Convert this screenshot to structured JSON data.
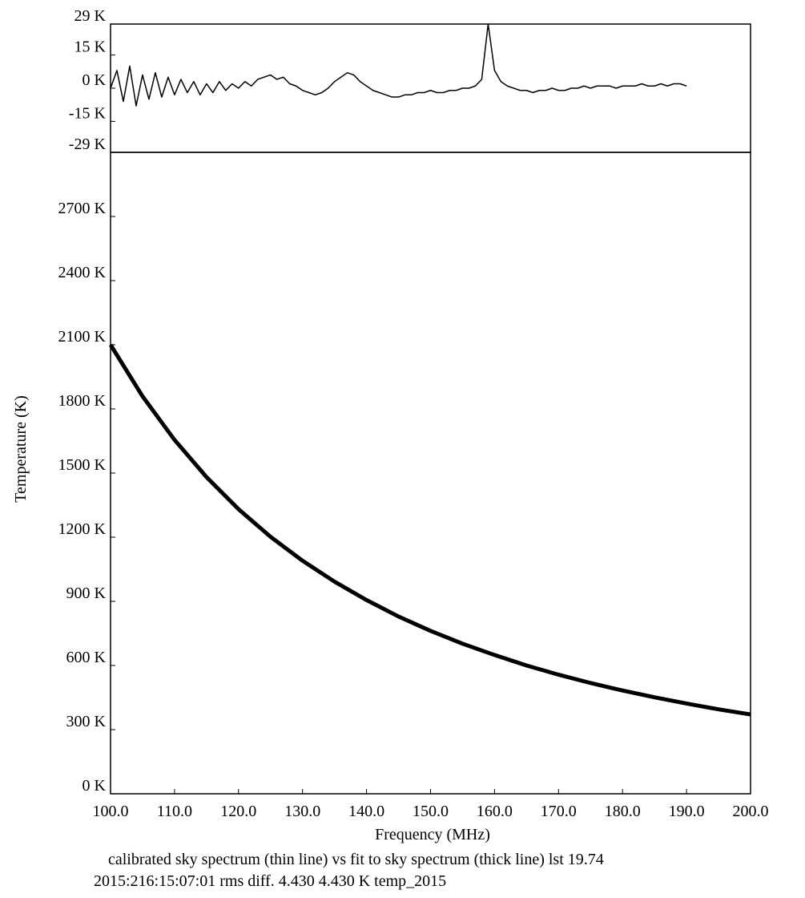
{
  "chart_data": [
    {
      "type": "line",
      "x": [
        100,
        101,
        102,
        103,
        104,
        105,
        106,
        107,
        108,
        109,
        110,
        111,
        112,
        113,
        114,
        115,
        116,
        117,
        118,
        119,
        120,
        121,
        122,
        123,
        124,
        125,
        126,
        127,
        128,
        129,
        130,
        131,
        132,
        133,
        134,
        135,
        136,
        137,
        138,
        139,
        140,
        141,
        142,
        143,
        144,
        145,
        146,
        147,
        148,
        149,
        150,
        151,
        152,
        153,
        154,
        155,
        156,
        157,
        158,
        159,
        160,
        161,
        162,
        163,
        164,
        165,
        166,
        167,
        168,
        169,
        170,
        171,
        172,
        173,
        174,
        175,
        176,
        177,
        178,
        179,
        180,
        181,
        182,
        183,
        184,
        185,
        186,
        187,
        188,
        189,
        190
      ],
      "series": [
        {
          "color": "#000000",
          "values": [
            0,
            8,
            -6,
            10,
            -8,
            6,
            -5,
            7,
            -4,
            5,
            -3,
            4,
            -2,
            3,
            -3,
            2,
            -2,
            3,
            -1,
            2,
            0,
            3,
            1,
            4,
            5,
            6,
            4,
            5,
            2,
            1,
            -1,
            -2,
            -3,
            -2,
            0,
            3,
            5,
            7,
            6,
            3,
            1,
            -1,
            -2,
            -3,
            -4,
            -4,
            -3,
            -3,
            -2,
            -2,
            -1,
            -2,
            -2,
            -1,
            -1,
            0,
            0,
            1,
            4,
            29,
            8,
            3,
            1,
            0,
            -1,
            -1,
            -2,
            -1,
            -1,
            0,
            -1,
            -1,
            0,
            0,
            1,
            0,
            1,
            1,
            1,
            0,
            1,
            1,
            1,
            2,
            1,
            1,
            2,
            1,
            2,
            2,
            1
          ]
        }
      ],
      "xlim": [
        100,
        200
      ],
      "ylim": [
        -29,
        29
      ],
      "yticks": [
        {
          "value": 29,
          "label": "29 K"
        },
        {
          "value": 15,
          "label": "15 K"
        },
        {
          "value": 0,
          "label": "0 K"
        },
        {
          "value": -15,
          "label": "-15 K"
        },
        {
          "value": -29,
          "label": "-29 K"
        }
      ]
    },
    {
      "type": "line",
      "x": [
        100,
        105,
        110,
        115,
        120,
        125,
        130,
        135,
        140,
        145,
        150,
        155,
        160,
        165,
        170,
        175,
        180,
        185,
        190,
        195,
        200
      ],
      "series": [
        {
          "color": "#000000",
          "values": [
            2100,
            1859,
            1655,
            1481,
            1331,
            1202,
            1090,
            992,
            906,
            829,
            762,
            702,
            649,
            600,
            557,
            518,
            483,
            451,
            422,
            395,
            371
          ]
        }
      ],
      "xlim": [
        100,
        200
      ],
      "ylim": [
        0,
        3000
      ],
      "xticks": [
        {
          "value": 100,
          "label": "100.0"
        },
        {
          "value": 110,
          "label": "110.0"
        },
        {
          "value": 120,
          "label": "120.0"
        },
        {
          "value": 130,
          "label": "130.0"
        },
        {
          "value": 140,
          "label": "140.0"
        },
        {
          "value": 150,
          "label": "150.0"
        },
        {
          "value": 160,
          "label": "160.0"
        },
        {
          "value": 170,
          "label": "170.0"
        },
        {
          "value": 180,
          "label": "180.0"
        },
        {
          "value": 190,
          "label": "190.0"
        },
        {
          "value": 200,
          "label": "200.0"
        }
      ],
      "yticks": [
        {
          "value": 0,
          "label": "0 K"
        },
        {
          "value": 300,
          "label": "300 K"
        },
        {
          "value": 600,
          "label": "600 K"
        },
        {
          "value": 900,
          "label": "900 K"
        },
        {
          "value": 1200,
          "label": "1200 K"
        },
        {
          "value": 1500,
          "label": "1500 K"
        },
        {
          "value": 1800,
          "label": "1800 K"
        },
        {
          "value": 2100,
          "label": "2100 K"
        },
        {
          "value": 2400,
          "label": "2400 K"
        },
        {
          "value": 2700,
          "label": "2700 K"
        }
      ],
      "xlabel": "Frequency (MHz)",
      "ylabel": "Temperature (K)",
      "notes": [
        "calibrated sky spectrum (thin line) vs fit to sky spectrum (thick line) lst 19.74",
        "2015:216:15:07:01 rms diff. 4.430 4.430 K temp_2015"
      ]
    }
  ]
}
